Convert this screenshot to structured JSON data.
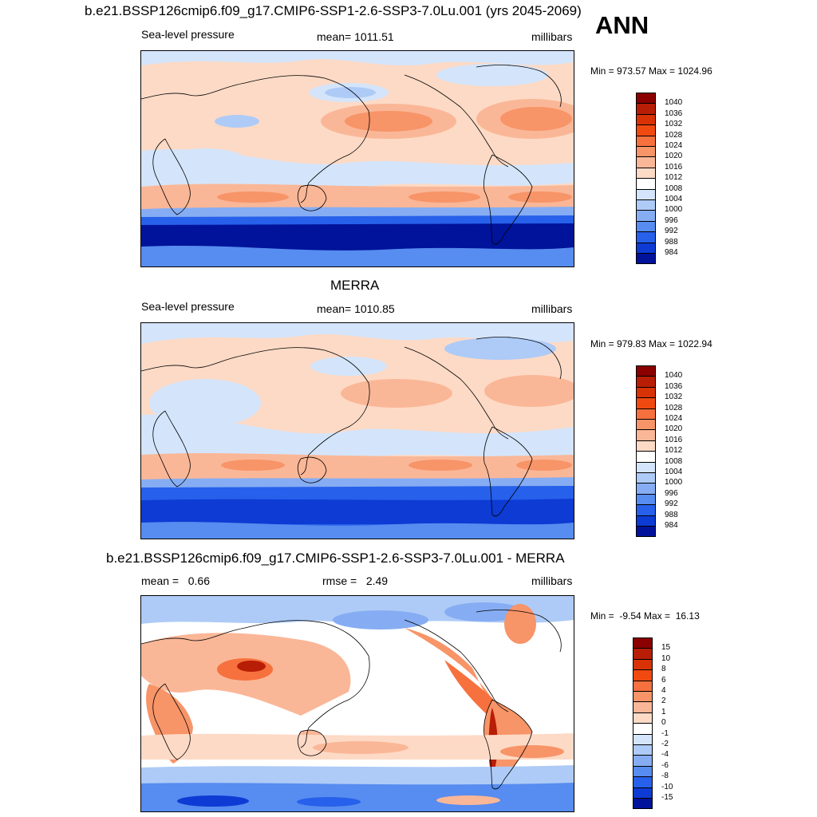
{
  "season": "ANN",
  "panels": [
    {
      "id": "model",
      "title": "b.e21.BSSP126cmip6.f09_g17.CMIP6-SSP1-2.6-SSP3-7.0Lu.001 (yrs 2045-2069)",
      "left": "Sea-level pressure",
      "center": "mean= 1011.51",
      "right": "millibars",
      "minmax": "Min = 973.57 Max = 1024.96",
      "levels": [
        "1040",
        "1036",
        "1032",
        "1028",
        "1024",
        "1020",
        "1016",
        "1012",
        "1008",
        "1004",
        "1000",
        "996",
        "992",
        "988",
        "984"
      ],
      "colors": [
        "#8b0000",
        "#b81d06",
        "#d93207",
        "#f04a11",
        "#f6713e",
        "#f79468",
        "#fab797",
        "#fddac6",
        "#ffffff",
        "#d4e5fb",
        "#aecbf7",
        "#86adf3",
        "#578cf0",
        "#2760ea",
        "#0d3bd4",
        "#00139a"
      ]
    },
    {
      "id": "obs",
      "title": "MERRA",
      "left": "Sea-level pressure",
      "center": "mean= 1010.85",
      "right": "millibars",
      "minmax": "Min = 979.83 Max = 1022.94",
      "levels": [
        "1040",
        "1036",
        "1032",
        "1028",
        "1024",
        "1020",
        "1016",
        "1012",
        "1008",
        "1004",
        "1000",
        "996",
        "992",
        "988",
        "984"
      ],
      "colors": [
        "#8b0000",
        "#b81d06",
        "#d93207",
        "#f04a11",
        "#f6713e",
        "#f79468",
        "#fab797",
        "#fddac6",
        "#ffffff",
        "#d4e5fb",
        "#aecbf7",
        "#86adf3",
        "#578cf0",
        "#2760ea",
        "#0d3bd4",
        "#00139a"
      ]
    },
    {
      "id": "diff",
      "title": "b.e21.BSSP126cmip6.f09_g17.CMIP6-SSP1-2.6-SSP3-7.0Lu.001 - MERRA",
      "left": "mean =   0.66",
      "center": "rmse =   2.49",
      "right": "millibars",
      "minmax": "Min =  -9.54 Max =  16.13",
      "levels": [
        "15",
        "10",
        "8",
        "6",
        "4",
        "2",
        "1",
        "0",
        "-1",
        "-2",
        "-4",
        "-6",
        "-8",
        "-10",
        "-15"
      ],
      "colors": [
        "#8b0000",
        "#b81d06",
        "#d93207",
        "#f04a11",
        "#f6713e",
        "#f79468",
        "#fab797",
        "#fddac6",
        "#ffffff",
        "#d4e5fb",
        "#aecbf7",
        "#86adf3",
        "#578cf0",
        "#2760ea",
        "#0d3bd4",
        "#00139a"
      ]
    }
  ]
}
